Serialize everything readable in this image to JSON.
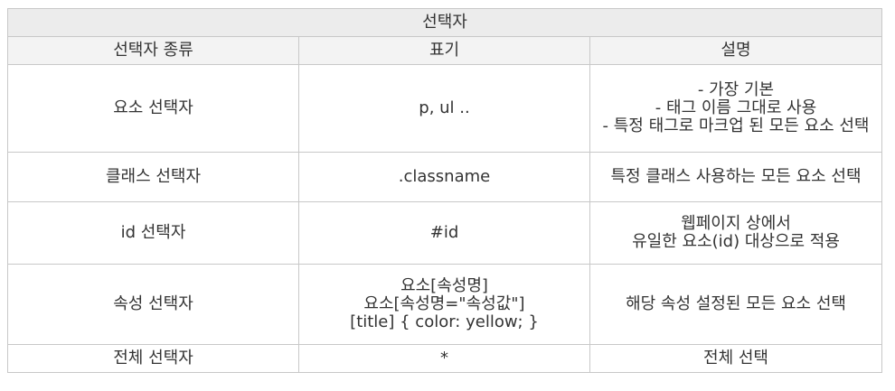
{
  "table": {
    "title": "선택자",
    "headers": [
      "선택자 종류",
      "표기",
      "설명"
    ],
    "rows": [
      {
        "kind": "요소 선택자",
        "notation": [
          "p, ul .."
        ],
        "description": [
          "- 가장 기본",
          "- 태그 이름 그대로 사용",
          "- 특정 태그로 마크업 된 모든 요소 선택"
        ]
      },
      {
        "kind": "클래스 선택자",
        "notation": [
          ".classname"
        ],
        "description": [
          "특정 클래스 사용하는 모든 요소 선택"
        ]
      },
      {
        "kind": "id 선택자",
        "notation": [
          "#id"
        ],
        "description": [
          "웹페이지 상에서",
          "유일한 요소(id) 대상으로 적용"
        ]
      },
      {
        "kind": "속성 선택자",
        "notation": [
          "요소[속성명]",
          "요소[속성명=\"속성값\"]",
          "[title] { color: yellow; }"
        ],
        "description": [
          "해당 속성 설정된 모든 요소 선택"
        ]
      },
      {
        "kind": "전체 선택자",
        "notation": [
          "*"
        ],
        "description": [
          "전체 선택"
        ]
      }
    ]
  }
}
